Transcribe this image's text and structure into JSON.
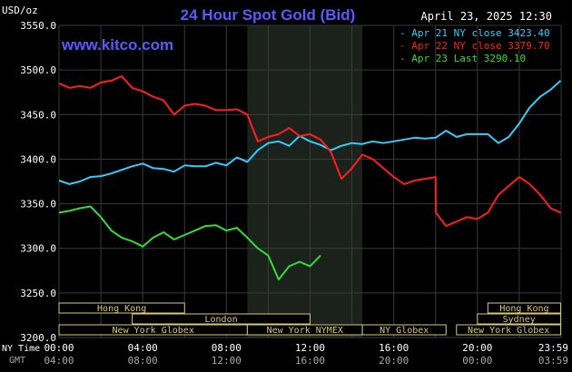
{
  "header": {
    "unit": "USD/oz",
    "title": "24 Hour Spot Gold (Bid)",
    "date_time": "April 23, 2025 12:30",
    "watermark": "www.kitco.com"
  },
  "colors": {
    "background": "#000000",
    "grid": "#3a3a3a",
    "axis_text": "#ffffff",
    "title": "#5a5aff",
    "watermark": "#5a5aff",
    "shade": "#1b221b",
    "session_box": "#d8c874",
    "cyan": "#33ccff",
    "red": "#ff1e1e",
    "green": "#33dd33"
  },
  "chart_data": {
    "type": "line",
    "title": "24 Hour Spot Gold (Bid)",
    "ylabel": "USD/oz",
    "ylim": [
      3200,
      3550
    ],
    "yticks": [
      "3550.0",
      "3500.0",
      "3450.0",
      "3400.0",
      "3350.0",
      "3300.0",
      "3250.0",
      "3200.0"
    ],
    "ytick_values": [
      3550,
      3500,
      3450,
      3400,
      3350,
      3300,
      3250,
      3200
    ],
    "xlim": [
      0,
      24
    ],
    "x_axis_label_primary": "NY Time",
    "x_axis_label_secondary": "GMT",
    "xticks_ny": [
      "00:00",
      "04:00",
      "08:00",
      "12:00",
      "16:00",
      "20:00",
      "23:59"
    ],
    "xticks_gmt": [
      "04:00",
      "08:00",
      "12:00",
      "16:00",
      "20:00",
      "00:00",
      "03:59"
    ],
    "xtick_hours": [
      0,
      4,
      8,
      12,
      16,
      20,
      23.98
    ],
    "shaded_range": [
      9,
      14.5
    ],
    "series": [
      {
        "name": "Apr 21 NY close 3423.40",
        "color": "cyan",
        "x": [
          0,
          0.5,
          1,
          1.5,
          2,
          2.5,
          3,
          3.5,
          4,
          4.5,
          5,
          5.5,
          6,
          6.5,
          7,
          7.5,
          8,
          8.5,
          9,
          9.5,
          10,
          10.5,
          11,
          11.5,
          12,
          12.5,
          13,
          13.5,
          14,
          14.5,
          15,
          15.5,
          16,
          16.5,
          17,
          17.5,
          18,
          18.5,
          19,
          19.5,
          20,
          20.5,
          21,
          21.5,
          22,
          22.5,
          23,
          23.5,
          23.98
        ],
        "values": [
          3376,
          3372,
          3375,
          3380,
          3381,
          3384,
          3388,
          3392,
          3395,
          3390,
          3389,
          3386,
          3393,
          3392,
          3392,
          3396,
          3393,
          3402,
          3397,
          3410,
          3418,
          3420,
          3415,
          3426,
          3420,
          3416,
          3410,
          3415,
          3418,
          3417,
          3420,
          3418,
          3420,
          3422,
          3424,
          3423,
          3424,
          3432,
          3425,
          3428,
          3428,
          3428,
          3418,
          3425,
          3440,
          3458,
          3470,
          3478,
          3488
        ]
      },
      {
        "name": "Apr 22 NY close 3379.70",
        "color": "red",
        "x": [
          0,
          0.5,
          1,
          1.5,
          2,
          2.5,
          3,
          3.5,
          4,
          4.5,
          5,
          5.5,
          6,
          6.5,
          7,
          7.5,
          8,
          8.5,
          9,
          9.5,
          10,
          10.5,
          11,
          11.5,
          12,
          12.5,
          13,
          13.5,
          14,
          14.5,
          15,
          15.5,
          16,
          16.5,
          17,
          17.5,
          18,
          18.01,
          18.5,
          19,
          19.5,
          20,
          20.5,
          21,
          21.5,
          22,
          22.5,
          23,
          23.5,
          23.98
        ],
        "values": [
          3485,
          3480,
          3482,
          3480,
          3486,
          3488,
          3493,
          3480,
          3476,
          3470,
          3466,
          3450,
          3460,
          3462,
          3460,
          3455,
          3455,
          3456,
          3450,
          3420,
          3425,
          3428,
          3435,
          3426,
          3428,
          3422,
          3408,
          3378,
          3390,
          3405,
          3400,
          3390,
          3380,
          3372,
          3376,
          3378,
          3380,
          3340,
          3325,
          3330,
          3335,
          3333,
          3340,
          3360,
          3370,
          3380,
          3372,
          3360,
          3345,
          3340
        ]
      },
      {
        "name": "Apr 23 Last 3290.10",
        "color": "green",
        "x": [
          0,
          0.5,
          1,
          1.5,
          2,
          2.5,
          3,
          3.5,
          4,
          4.5,
          5,
          5.5,
          6,
          6.5,
          7,
          7.5,
          8,
          8.5,
          9,
          9.5,
          10,
          10.5,
          11,
          11.5,
          12,
          12.5
        ],
        "values": [
          3340,
          3342,
          3345,
          3347,
          3335,
          3320,
          3312,
          3308,
          3302,
          3312,
          3318,
          3310,
          3315,
          3320,
          3325,
          3326,
          3320,
          3323,
          3312,
          3300,
          3292,
          3265,
          3280,
          3285,
          3280,
          3292
        ]
      }
    ],
    "legend_position": "top-right",
    "sessions": [
      {
        "label": "Hong Kong",
        "start": 0,
        "end": 6,
        "row": 0
      },
      {
        "label": "London",
        "start": 3.5,
        "end": 12,
        "row": 1
      },
      {
        "label": "New York Globex",
        "start": 0,
        "end": 9,
        "row": 2
      },
      {
        "label": "New York NYMEX",
        "start": 9,
        "end": 14.5,
        "row": 2
      },
      {
        "label": "NY Globex",
        "start": 14.5,
        "end": 18.5,
        "row": 2
      },
      {
        "label": "Hong Kong",
        "start": 20.5,
        "end": 23.98,
        "row": 0
      },
      {
        "label": "Sydney",
        "start": 20,
        "end": 23.98,
        "row": 1
      },
      {
        "label": "New York Globex",
        "start": 19,
        "end": 23.98,
        "row": 2
      }
    ]
  }
}
